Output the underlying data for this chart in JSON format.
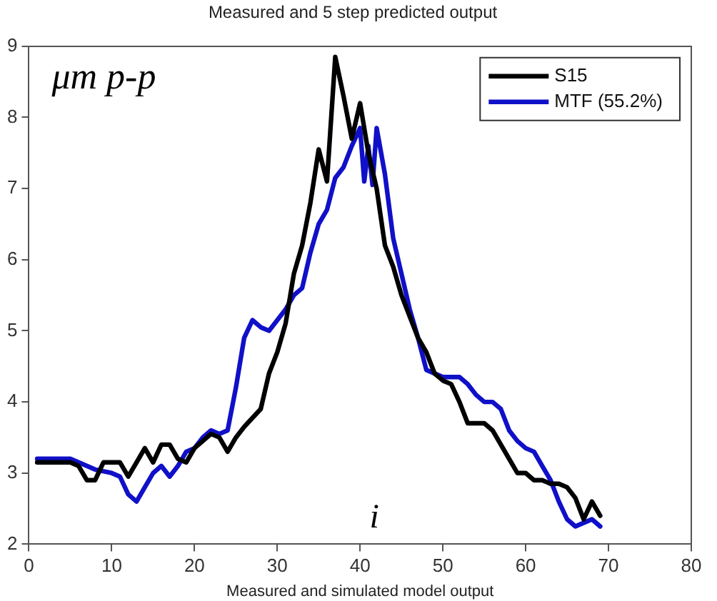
{
  "chart_data": {
    "type": "line",
    "title": "Measured and 5 step predicted output",
    "xlabel": "Measured and simulated model output",
    "ylabel": "μm p-p",
    "annotations": [
      "i"
    ],
    "xlim": [
      0,
      80
    ],
    "xticks": [
      0,
      10,
      20,
      30,
      40,
      50,
      60,
      70,
      80
    ],
    "ylim": [
      2,
      9
    ],
    "yticks": [
      2,
      3,
      4,
      5,
      6,
      7,
      8,
      9
    ],
    "grid": false,
    "legend": "top right",
    "line_style": "solid",
    "marker": "none",
    "series": [
      {
        "name": "S15",
        "color": "#000000",
        "x": [
          1,
          5,
          6,
          7,
          8,
          9,
          11,
          12,
          13,
          14,
          15,
          16,
          17,
          18,
          19,
          20,
          22,
          23,
          24,
          25,
          26,
          28,
          29,
          30,
          31,
          32,
          33,
          34,
          35,
          36,
          37,
          38,
          39,
          40,
          41,
          42,
          43,
          44,
          45,
          46,
          47,
          48,
          49,
          50,
          51,
          52,
          53,
          54,
          55,
          56,
          57,
          58,
          59,
          60,
          61,
          62,
          63,
          64,
          65,
          66,
          67,
          68,
          69
        ],
        "values": [
          3.15,
          3.15,
          3.1,
          2.9,
          2.9,
          3.15,
          3.15,
          2.95,
          3.15,
          3.35,
          3.15,
          3.4,
          3.4,
          3.2,
          3.15,
          3.35,
          3.55,
          3.5,
          3.3,
          3.5,
          3.65,
          3.9,
          4.4,
          4.7,
          5.1,
          5.8,
          6.2,
          6.8,
          7.55,
          7.1,
          8.85,
          8.3,
          7.7,
          8.2,
          7.5,
          7.0,
          6.2,
          5.9,
          5.5,
          5.2,
          4.9,
          4.7,
          4.4,
          4.3,
          4.25,
          4.0,
          3.7,
          3.7,
          3.7,
          3.6,
          3.4,
          3.2,
          3.0,
          3.0,
          2.9,
          2.9,
          2.85,
          2.85,
          2.8,
          2.65,
          2.35,
          2.6,
          2.4
        ]
      },
      {
        "name": "MTF (55.2%)",
        "color": "#1010c8",
        "x": [
          1,
          5,
          6,
          8,
          10,
          11,
          12,
          13,
          14,
          15,
          16,
          17,
          18,
          19,
          20,
          21,
          22,
          23,
          24,
          25,
          26,
          27,
          28,
          29,
          30,
          31,
          32,
          33,
          34,
          35,
          36,
          37,
          38,
          39,
          40,
          40.5,
          41,
          41.5,
          42,
          43,
          44,
          45,
          46,
          47,
          48,
          49,
          50,
          51,
          52,
          53,
          54,
          55,
          56,
          57,
          58,
          59,
          60,
          61,
          62,
          63,
          64,
          65,
          66,
          67,
          68,
          69
        ],
        "values": [
          3.2,
          3.2,
          3.15,
          3.05,
          3.0,
          2.95,
          2.7,
          2.6,
          2.8,
          3.0,
          3.1,
          2.95,
          3.1,
          3.3,
          3.35,
          3.5,
          3.6,
          3.55,
          3.6,
          4.2,
          4.9,
          5.15,
          5.05,
          5.0,
          5.15,
          5.3,
          5.5,
          5.6,
          6.1,
          6.5,
          6.7,
          7.15,
          7.3,
          7.6,
          7.85,
          7.1,
          7.6,
          7.05,
          7.85,
          7.2,
          6.3,
          5.8,
          5.3,
          4.9,
          4.45,
          4.4,
          4.35,
          4.35,
          4.35,
          4.25,
          4.1,
          4.0,
          4.0,
          3.9,
          3.6,
          3.45,
          3.35,
          3.3,
          3.1,
          2.9,
          2.6,
          2.35,
          2.25,
          2.3,
          2.35,
          2.25
        ]
      }
    ]
  }
}
